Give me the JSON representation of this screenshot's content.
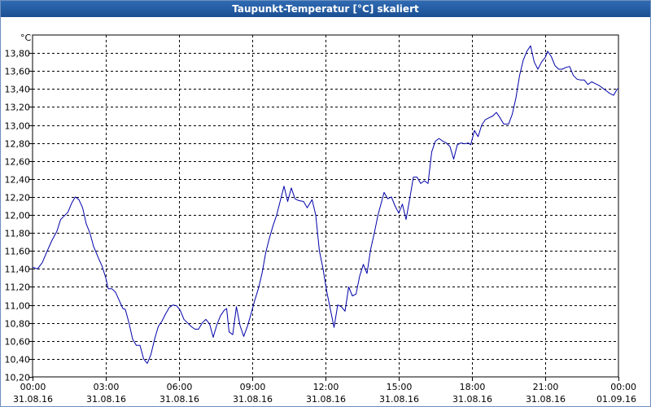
{
  "window": {
    "title": "Taupunkt-Temperatur [°C] skaliert"
  },
  "chart_data": {
    "type": "line",
    "title": "Taupunkt-Temperatur [°C] skaliert",
    "yunit": "°C",
    "ylim": [
      10.2,
      14.0
    ],
    "xlim_hours": [
      0,
      24
    ],
    "grid": true,
    "yticks": [
      {
        "v": 10.2,
        "label": "10,20"
      },
      {
        "v": 10.4,
        "label": "10,40"
      },
      {
        "v": 10.6,
        "label": "10,60"
      },
      {
        "v": 10.8,
        "label": "10,80"
      },
      {
        "v": 11.0,
        "label": "11,00"
      },
      {
        "v": 11.2,
        "label": "11,20"
      },
      {
        "v": 11.4,
        "label": "11,40"
      },
      {
        "v": 11.6,
        "label": "11,60"
      },
      {
        "v": 11.8,
        "label": "11,80"
      },
      {
        "v": 12.0,
        "label": "12,00"
      },
      {
        "v": 12.2,
        "label": "12,20"
      },
      {
        "v": 12.4,
        "label": "12,40"
      },
      {
        "v": 12.6,
        "label": "12,60"
      },
      {
        "v": 12.8,
        "label": "12,80"
      },
      {
        "v": 13.0,
        "label": "13,00"
      },
      {
        "v": 13.2,
        "label": "13,20"
      },
      {
        "v": 13.4,
        "label": "13,40"
      },
      {
        "v": 13.6,
        "label": "13,60"
      },
      {
        "v": 13.8,
        "label": "13,80"
      }
    ],
    "xticks": [
      {
        "h": 0,
        "time": "00:00",
        "date": "31.08.16"
      },
      {
        "h": 3,
        "time": "03:00",
        "date": "31.08.16"
      },
      {
        "h": 6,
        "time": "06:00",
        "date": "31.08.16"
      },
      {
        "h": 9,
        "time": "09:00",
        "date": "31.08.16"
      },
      {
        "h": 12,
        "time": "12:00",
        "date": "31.08.16"
      },
      {
        "h": 15,
        "time": "15:00",
        "date": "31.08.16"
      },
      {
        "h": 18,
        "time": "18:00",
        "date": "31.08.16"
      },
      {
        "h": 21,
        "time": "21:00",
        "date": "31.08.16"
      },
      {
        "h": 24,
        "time": "00:00",
        "date": "01.09.16"
      }
    ],
    "series": [
      {
        "color": "#0000aa",
        "points": [
          [
            0.0,
            11.42
          ],
          [
            0.2,
            11.4
          ],
          [
            0.4,
            11.47
          ],
          [
            0.6,
            11.6
          ],
          [
            0.8,
            11.72
          ],
          [
            1.0,
            11.82
          ],
          [
            1.15,
            11.95
          ],
          [
            1.3,
            11.99
          ],
          [
            1.45,
            12.03
          ],
          [
            1.6,
            12.13
          ],
          [
            1.75,
            12.2
          ],
          [
            1.9,
            12.17
          ],
          [
            2.05,
            12.08
          ],
          [
            2.2,
            11.9
          ],
          [
            2.35,
            11.8
          ],
          [
            2.5,
            11.65
          ],
          [
            2.7,
            11.52
          ],
          [
            2.85,
            11.43
          ],
          [
            3.0,
            11.3
          ],
          [
            3.1,
            11.18
          ],
          [
            3.25,
            11.18
          ],
          [
            3.4,
            11.14
          ],
          [
            3.55,
            11.05
          ],
          [
            3.7,
            10.96
          ],
          [
            3.8,
            10.95
          ],
          [
            3.95,
            10.8
          ],
          [
            4.1,
            10.62
          ],
          [
            4.25,
            10.55
          ],
          [
            4.4,
            10.55
          ],
          [
            4.55,
            10.4
          ],
          [
            4.7,
            10.35
          ],
          [
            4.85,
            10.45
          ],
          [
            5.0,
            10.62
          ],
          [
            5.15,
            10.76
          ],
          [
            5.3,
            10.82
          ],
          [
            5.45,
            10.9
          ],
          [
            5.6,
            10.97
          ],
          [
            5.75,
            11.0
          ],
          [
            5.9,
            10.99
          ],
          [
            6.05,
            10.94
          ],
          [
            6.2,
            10.84
          ],
          [
            6.35,
            10.8
          ],
          [
            6.5,
            10.76
          ],
          [
            6.65,
            10.73
          ],
          [
            6.8,
            10.73
          ],
          [
            6.95,
            10.8
          ],
          [
            7.1,
            10.84
          ],
          [
            7.25,
            10.79
          ],
          [
            7.4,
            10.64
          ],
          [
            7.55,
            10.78
          ],
          [
            7.7,
            10.88
          ],
          [
            7.85,
            10.94
          ],
          [
            7.95,
            10.96
          ],
          [
            8.05,
            10.7
          ],
          [
            8.2,
            10.67
          ],
          [
            8.35,
            10.98
          ],
          [
            8.5,
            10.77
          ],
          [
            8.65,
            10.65
          ],
          [
            8.8,
            10.76
          ],
          [
            8.95,
            10.9
          ],
          [
            9.1,
            11.05
          ],
          [
            9.25,
            11.18
          ],
          [
            9.4,
            11.35
          ],
          [
            9.55,
            11.58
          ],
          [
            9.7,
            11.74
          ],
          [
            9.85,
            11.88
          ],
          [
            10.0,
            12.0
          ],
          [
            10.15,
            12.16
          ],
          [
            10.3,
            12.32
          ],
          [
            10.45,
            12.15
          ],
          [
            10.6,
            12.3
          ],
          [
            10.75,
            12.18
          ],
          [
            10.9,
            12.16
          ],
          [
            11.1,
            12.15
          ],
          [
            11.25,
            12.08
          ],
          [
            11.45,
            12.17
          ],
          [
            11.6,
            12.0
          ],
          [
            11.75,
            11.6
          ],
          [
            11.9,
            11.4
          ],
          [
            12.05,
            11.15
          ],
          [
            12.2,
            10.95
          ],
          [
            12.35,
            10.75
          ],
          [
            12.5,
            11.0
          ],
          [
            12.65,
            10.98
          ],
          [
            12.8,
            10.93
          ],
          [
            12.95,
            11.2
          ],
          [
            13.1,
            11.1
          ],
          [
            13.25,
            11.12
          ],
          [
            13.4,
            11.32
          ],
          [
            13.55,
            11.45
          ],
          [
            13.7,
            11.35
          ],
          [
            13.85,
            11.62
          ],
          [
            14.0,
            11.8
          ],
          [
            14.15,
            12.0
          ],
          [
            14.3,
            12.15
          ],
          [
            14.4,
            12.25
          ],
          [
            14.55,
            12.18
          ],
          [
            14.7,
            12.2
          ],
          [
            14.85,
            12.1
          ],
          [
            15.0,
            12.02
          ],
          [
            15.15,
            12.12
          ],
          [
            15.3,
            11.95
          ],
          [
            15.45,
            12.18
          ],
          [
            15.6,
            12.42
          ],
          [
            15.75,
            12.42
          ],
          [
            15.9,
            12.35
          ],
          [
            16.05,
            12.38
          ],
          [
            16.2,
            12.35
          ],
          [
            16.35,
            12.7
          ],
          [
            16.5,
            12.82
          ],
          [
            16.65,
            12.85
          ],
          [
            16.8,
            12.82
          ],
          [
            16.95,
            12.8
          ],
          [
            17.1,
            12.76
          ],
          [
            17.25,
            12.62
          ],
          [
            17.4,
            12.78
          ],
          [
            17.55,
            12.8
          ],
          [
            17.7,
            12.79
          ],
          [
            17.85,
            12.8
          ],
          [
            17.95,
            12.78
          ],
          [
            18.1,
            12.94
          ],
          [
            18.25,
            12.87
          ],
          [
            18.4,
            13.0
          ],
          [
            18.55,
            13.06
          ],
          [
            18.7,
            13.08
          ],
          [
            18.85,
            13.1
          ],
          [
            19.0,
            13.14
          ],
          [
            19.15,
            13.08
          ],
          [
            19.3,
            13.01
          ],
          [
            19.5,
            13.01
          ],
          [
            19.65,
            13.12
          ],
          [
            19.8,
            13.3
          ],
          [
            19.95,
            13.55
          ],
          [
            20.1,
            13.72
          ],
          [
            20.25,
            13.82
          ],
          [
            20.4,
            13.88
          ],
          [
            20.55,
            13.7
          ],
          [
            20.7,
            13.62
          ],
          [
            20.85,
            13.7
          ],
          [
            21.0,
            13.75
          ],
          [
            21.1,
            13.82
          ],
          [
            21.25,
            13.76
          ],
          [
            21.4,
            13.66
          ],
          [
            21.55,
            13.62
          ],
          [
            21.7,
            13.62
          ],
          [
            21.85,
            13.64
          ],
          [
            22.0,
            13.65
          ],
          [
            22.15,
            13.55
          ],
          [
            22.3,
            13.51
          ],
          [
            22.45,
            13.5
          ],
          [
            22.6,
            13.5
          ],
          [
            22.75,
            13.45
          ],
          [
            22.9,
            13.48
          ],
          [
            23.05,
            13.46
          ],
          [
            23.2,
            13.44
          ],
          [
            23.35,
            13.41
          ],
          [
            23.5,
            13.38
          ],
          [
            23.65,
            13.35
          ],
          [
            23.8,
            13.33
          ],
          [
            23.95,
            13.4
          ],
          [
            24.0,
            13.4
          ]
        ]
      }
    ]
  }
}
